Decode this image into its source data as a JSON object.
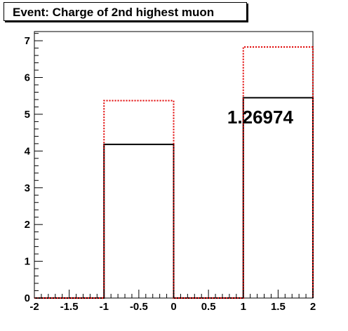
{
  "chart_data": {
    "type": "histogram",
    "title": "Event: Charge of 2nd highest muon",
    "xlim": [
      -2,
      2
    ],
    "ylim": [
      0,
      7.25
    ],
    "x_ticks": [
      -2,
      -1.5,
      -1,
      -0.5,
      0,
      0.5,
      1,
      1.5,
      2
    ],
    "x_tick_labels": [
      "-2",
      "-1.5",
      "-1",
      "-0.5",
      "0",
      "0.5",
      "1",
      "1.5",
      "2"
    ],
    "y_ticks": [
      0,
      1,
      2,
      3,
      4,
      5,
      6,
      7
    ],
    "y_tick_labels": [
      "0",
      "1",
      "2",
      "3",
      "4",
      "5",
      "6",
      "7"
    ],
    "bin_edges": [
      -2,
      -1,
      0,
      1,
      2
    ],
    "series": [
      {
        "color": "#000000",
        "style": "solid",
        "values": [
          0,
          4.18,
          0,
          5.45
        ]
      },
      {
        "color": "#e00000",
        "style": "dotted",
        "values": [
          0,
          5.37,
          0,
          6.83
        ]
      }
    ],
    "annotation": {
      "text": "1.26974",
      "x": 0.77,
      "y": 4.75
    }
  }
}
